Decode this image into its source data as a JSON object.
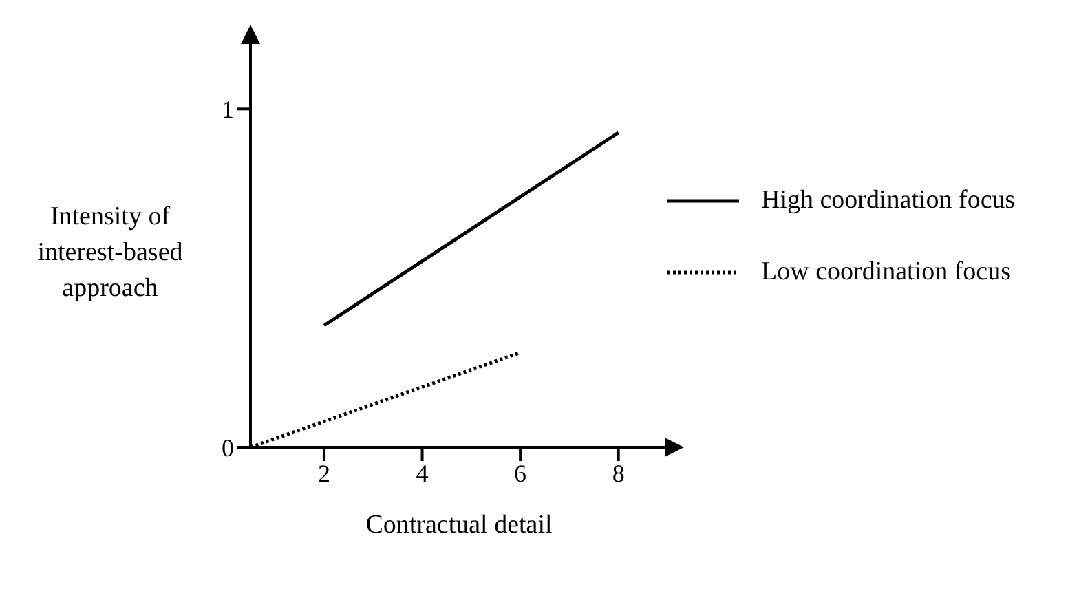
{
  "chart_data": {
    "type": "line",
    "xlabel": "Contractual detail",
    "ylabel": "Intensity of interest-based approach",
    "xlim": [
      0.5,
      9
    ],
    "xticks": [
      2,
      4,
      6,
      8
    ],
    "ylim": [
      0,
      1.2
    ],
    "yticks": [
      0,
      1
    ],
    "grid": false,
    "legend": "right",
    "marker": "none",
    "series": [
      {
        "name": "High coordination focus",
        "color": "#000000",
        "line_style": "solid",
        "x": [
          2,
          8
        ],
        "values": [
          0.36,
          0.93
        ]
      },
      {
        "name": "Low coordination focus",
        "color": "#000000",
        "line_style": "dotted",
        "x": [
          0.5,
          6
        ],
        "values": [
          0,
          0.28
        ]
      }
    ]
  }
}
